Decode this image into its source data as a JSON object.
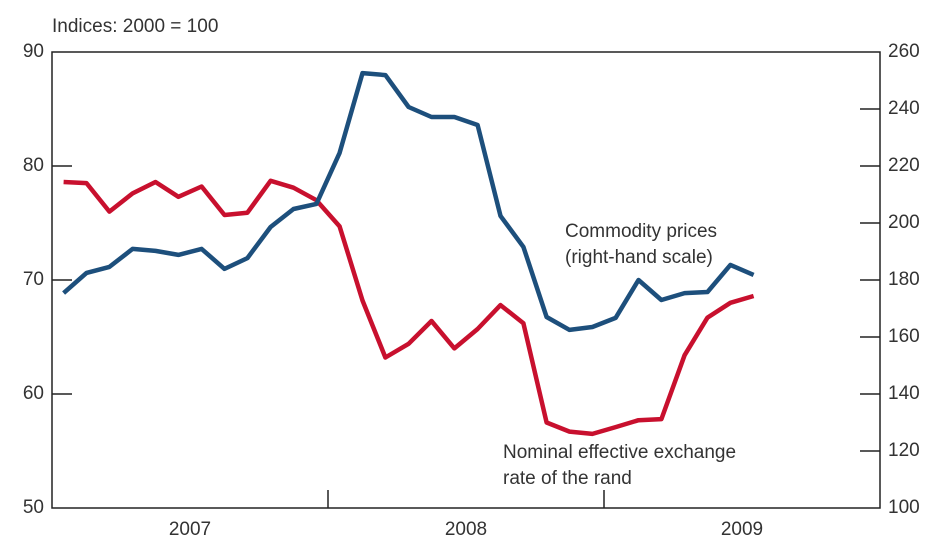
{
  "chart_data": {
    "type": "line",
    "subtitle": "Indices: 2000 = 100",
    "x": [
      2007.042,
      2007.125,
      2007.208,
      2007.292,
      2007.375,
      2007.458,
      2007.542,
      2007.625,
      2007.708,
      2007.792,
      2007.875,
      2007.958,
      2008.042,
      2008.125,
      2008.208,
      2008.292,
      2008.375,
      2008.458,
      2008.542,
      2008.625,
      2008.708,
      2008.792,
      2008.875,
      2008.958,
      2009.042,
      2009.125,
      2009.208,
      2009.292,
      2009.375,
      2009.458,
      2009.542
    ],
    "xlim": [
      2007,
      2010
    ],
    "xticks": [
      {
        "value": 2007.5,
        "label": "2007"
      },
      {
        "value": 2008.5,
        "label": "2008"
      },
      {
        "value": 2009.5,
        "label": "2009"
      }
    ],
    "xdividers": [
      2008,
      2009
    ],
    "ylim": [
      50,
      90
    ],
    "yticks": [
      50,
      60,
      70,
      80,
      90
    ],
    "y2lim": [
      100,
      260
    ],
    "y2ticks": [
      100,
      120,
      140,
      160,
      180,
      200,
      220,
      240,
      260
    ],
    "series": [
      {
        "name": "Nominal effective exchange rate of the rand",
        "color": "#c8102e",
        "axis": "y",
        "values": [
          78.6,
          78.5,
          76.0,
          77.6,
          78.6,
          77.3,
          78.2,
          75.7,
          75.9,
          78.7,
          78.1,
          77.0,
          74.7,
          68.2,
          63.2,
          64.4,
          66.4,
          64.0,
          65.7,
          67.8,
          66.2,
          57.5,
          56.7,
          56.5,
          57.1,
          57.7,
          57.8,
          63.4,
          66.7,
          68.0,
          68.6
        ]
      },
      {
        "name": "Commodity prices",
        "color": "#1d4f7c",
        "axis": "y2",
        "values": [
          175.4,
          182.5,
          184.6,
          190.9,
          190.2,
          188.8,
          190.9,
          183.9,
          187.7,
          198.6,
          204.9,
          206.7,
          224.6,
          252.6,
          251.9,
          240.7,
          237.2,
          237.2,
          234.4,
          202.5,
          191.6,
          167.0,
          162.5,
          163.5,
          166.7,
          180.0,
          173.0,
          175.4,
          175.8,
          185.3,
          181.8
        ]
      }
    ],
    "annotations": [
      {
        "lines": [
          "Commodity prices",
          "(right-hand scale)"
        ]
      },
      {
        "lines": [
          "Nominal effective exchange",
          "rate of the rand"
        ]
      }
    ]
  }
}
